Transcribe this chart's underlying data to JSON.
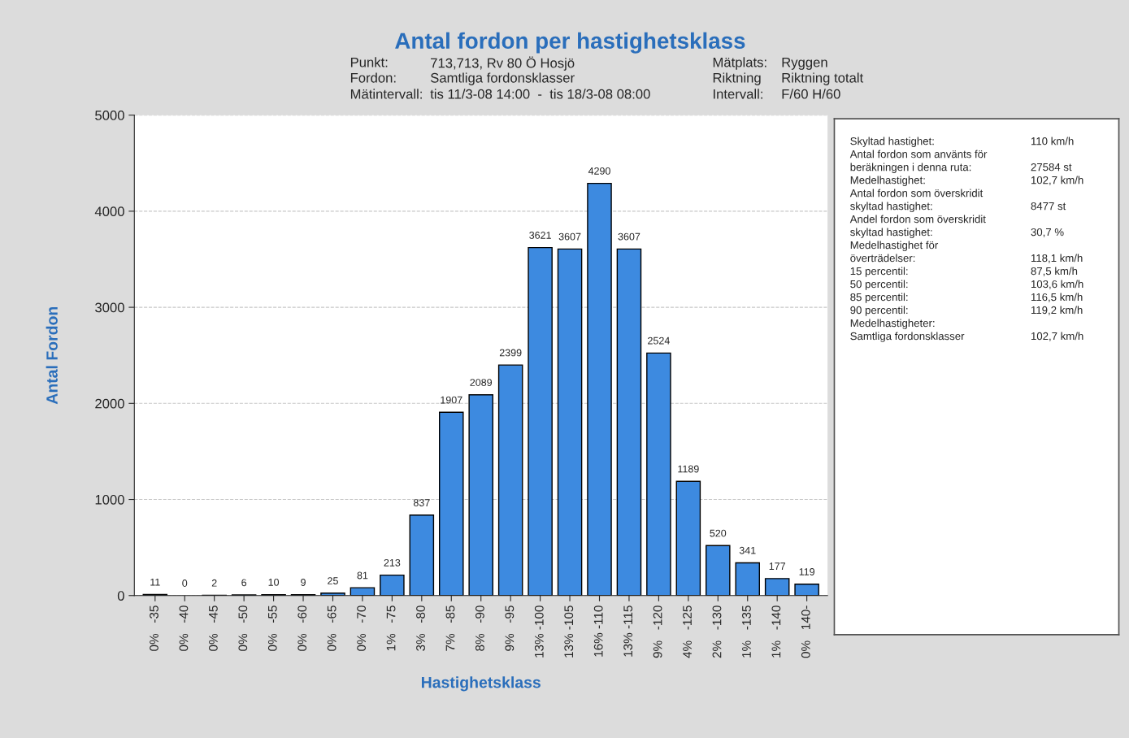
{
  "chart_data": {
    "type": "bar",
    "title": "Antal fordon per hastighetsklass",
    "xlabel": "Hastighetsklass",
    "ylabel": "Antal Fordon",
    "categories": [
      "0%   -35",
      "0%   -40",
      "0%   -45",
      "0%   -50",
      "0%   -55",
      "0%   -60",
      "0%   -65",
      "0%   -70",
      "1%   -75",
      "3%   -80",
      "7%   -85",
      "8%   -90",
      "9%   -95",
      "13% -100",
      "13% -105",
      "16% -110",
      "13% -115",
      "9%   -120",
      "4%   -125",
      "2%   -130",
      "1%   -135",
      "1%   -140",
      "0%   140-"
    ],
    "values": [
      11,
      0,
      2,
      6,
      10,
      9,
      25,
      81,
      213,
      837,
      1907,
      2089,
      2399,
      3621,
      3607,
      4290,
      3607,
      2524,
      1189,
      520,
      341,
      177,
      119
    ],
    "color": "#3d8ae0",
    "data_labels": true,
    "ylim": [
      0,
      5000
    ],
    "yticks": [
      0,
      1000,
      2000,
      3000,
      4000,
      5000
    ],
    "grid": "y",
    "annotations": [
      "Punkt:",
      "713,713, Rv 80 Ö Hosjö",
      "Mätplats:",
      "Ryggen",
      "Fordon:",
      "Samtliga fordonsklasser",
      "Riktning",
      "Riktning totalt",
      "Mätintervall:",
      "tis 11/3-08 14:00  -  tis 18/3-08 08:00",
      "Intervall:",
      "F/60 H/60",
      "Skyltad hastighet:",
      "110 km/h",
      "Antal fordon som använts för",
      "beräkningen i denna ruta:",
      "27584 st",
      "Medelhastighet:",
      "102,7 km/h",
      "Antal fordon som överskridit",
      "skyltad hastighet:",
      "8477 st",
      "Andel fordon som överskridit",
      "skyltad hastighet:",
      "30,7 %",
      "Medelhastighet för",
      "överträdelser:",
      "118,1 km/h",
      "15 percentil:",
      "87,5 km/h",
      "50 percentil:",
      "103,6 km/h",
      "85 percentil:",
      "116,5 km/h",
      "90 percentil:",
      "119,2 km/h",
      "Medelhastigheter:",
      "Samtliga fordonsklasser",
      "102,7 km/h"
    ]
  }
}
